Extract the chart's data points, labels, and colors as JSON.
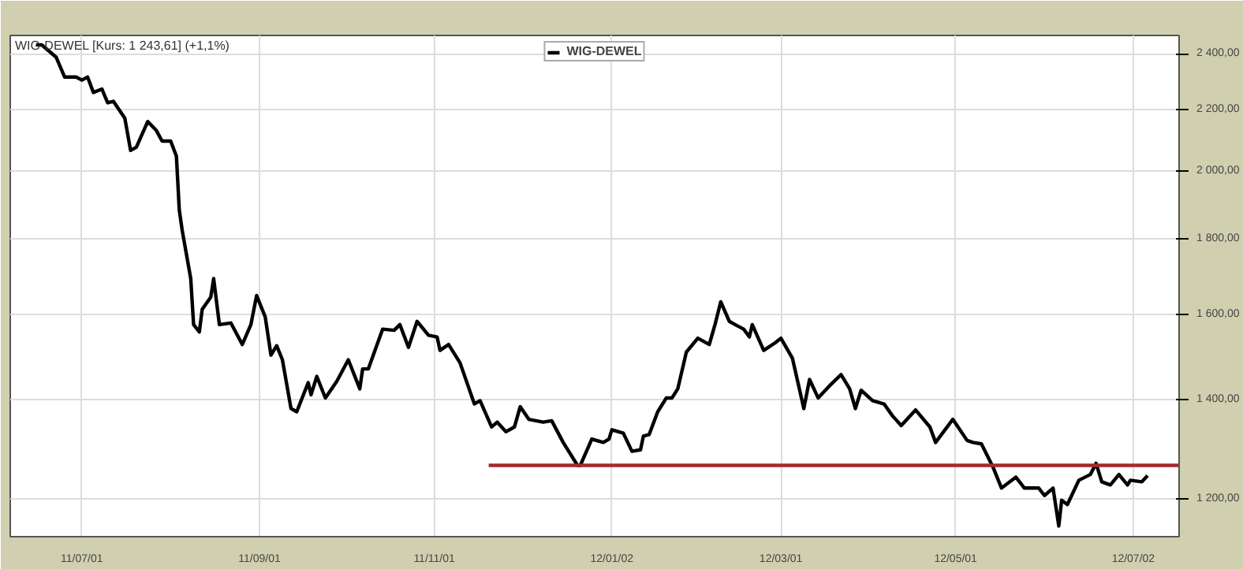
{
  "chart_data": {
    "type": "line",
    "annotations": [
      "WIG-DEWEL [Kurs: 1 243,61] (+1,1%)"
    ],
    "log": "y",
    "grid": true,
    "legend": "top",
    "marker": "none",
    "line_style": "solid",
    "xlim": [
      "2011-06-06",
      "2012-07-18"
    ],
    "xticks": [
      {
        "value": "2011-07-01",
        "label": "11/07/01"
      },
      {
        "value": "2011-09-01",
        "label": "11/09/01"
      },
      {
        "value": "2011-11-01",
        "label": "11/11/01"
      },
      {
        "value": "2012-01-02",
        "label": "12/01/02"
      },
      {
        "value": "2012-03-01",
        "label": "12/03/01"
      },
      {
        "value": "2012-05-01",
        "label": "12/05/01"
      },
      {
        "value": "2012-07-02",
        "label": "12/07/02"
      }
    ],
    "ylim": [
      1131,
      2470
    ],
    "yticks": [
      {
        "value": 1200,
        "label": "1 200,00"
      },
      {
        "value": 1400,
        "label": "1 400,00"
      },
      {
        "value": 1600,
        "label": "1 600,00"
      },
      {
        "value": 1800,
        "label": "1 800,00"
      },
      {
        "value": 2000,
        "label": "2 000,00"
      },
      {
        "value": 2200,
        "label": "2 200,00"
      },
      {
        "value": 2400,
        "label": "2 400,00"
      }
    ],
    "series": [
      {
        "name": "WIG-DEWEL",
        "color": "#000000",
        "x": [
          "2011-06-15",
          "2011-06-17",
          "2011-06-22",
          "2011-06-25",
          "2011-06-29",
          "2011-07-01",
          "2011-07-03",
          "2011-07-05",
          "2011-07-08",
          "2011-07-10",
          "2011-07-12",
          "2011-07-16",
          "2011-07-18",
          "2011-07-20",
          "2011-07-24",
          "2011-07-27",
          "2011-07-29",
          "2011-08-01",
          "2011-08-03",
          "2011-08-04",
          "2011-08-05",
          "2011-08-08",
          "2011-08-09",
          "2011-08-11",
          "2011-08-12",
          "2011-08-15",
          "2011-08-16",
          "2011-08-18",
          "2011-08-22",
          "2011-08-26",
          "2011-08-29",
          "2011-08-31",
          "2011-09-03",
          "2011-09-05",
          "2011-09-07",
          "2011-09-09",
          "2011-09-12",
          "2011-09-14",
          "2011-09-18",
          "2011-09-19",
          "2011-09-21",
          "2011-09-24",
          "2011-09-28",
          "2011-10-02",
          "2011-10-06",
          "2011-10-07",
          "2011-10-09",
          "2011-10-14",
          "2011-10-18",
          "2011-10-20",
          "2011-10-23",
          "2011-10-26",
          "2011-10-30",
          "2011-11-02",
          "2011-11-03",
          "2011-11-06",
          "2011-11-10",
          "2011-11-15",
          "2011-11-17",
          "2011-11-21",
          "2011-11-23",
          "2011-11-26",
          "2011-11-29",
          "2011-12-01",
          "2011-12-04",
          "2011-12-09",
          "2011-12-12",
          "2011-12-16",
          "2011-12-21",
          "2011-12-22",
          "2011-12-26",
          "2011-12-30",
          "2012-01-01",
          "2012-01-02",
          "2012-01-06",
          "2012-01-09",
          "2012-01-12",
          "2012-01-13",
          "2012-01-15",
          "2012-01-18",
          "2012-01-21",
          "2012-01-23",
          "2012-01-25",
          "2012-01-28",
          "2012-02-01",
          "2012-02-05",
          "2012-02-07",
          "2012-02-09",
          "2012-02-12",
          "2012-02-14",
          "2012-02-17",
          "2012-02-19",
          "2012-02-20",
          "2012-02-24",
          "2012-02-28",
          "2012-03-01",
          "2012-03-05",
          "2012-03-09",
          "2012-03-11",
          "2012-03-14",
          "2012-03-18",
          "2012-03-22",
          "2012-03-25",
          "2012-03-27",
          "2012-03-29",
          "2012-04-02",
          "2012-04-06",
          "2012-04-09",
          "2012-04-12",
          "2012-04-17",
          "2012-04-22",
          "2012-04-24",
          "2012-04-30",
          "2012-05-05",
          "2012-05-07",
          "2012-05-10",
          "2012-05-14",
          "2012-05-17",
          "2012-05-22",
          "2012-05-25",
          "2012-05-30",
          "2012-06-01",
          "2012-06-04",
          "2012-06-06",
          "2012-06-07",
          "2012-06-09",
          "2012-06-13",
          "2012-06-17",
          "2012-06-19",
          "2012-06-21",
          "2012-06-24",
          "2012-06-27",
          "2012-06-30",
          "2012-07-01",
          "2012-07-05",
          "2012-07-07"
        ],
        "values": [
          2434,
          2434,
          2388,
          2315,
          2315,
          2304,
          2315,
          2260,
          2272,
          2224,
          2229,
          2171,
          2065,
          2075,
          2160,
          2130,
          2095,
          2095,
          2046,
          1882,
          1824,
          1691,
          1574,
          1556,
          1612,
          1643,
          1691,
          1574,
          1578,
          1526,
          1574,
          1647,
          1593,
          1501,
          1523,
          1490,
          1381,
          1374,
          1438,
          1411,
          1452,
          1404,
          1441,
          1490,
          1424,
          1469,
          1469,
          1563,
          1560,
          1574,
          1519,
          1582,
          1548,
          1544,
          1512,
          1526,
          1483,
          1391,
          1398,
          1342,
          1352,
          1332,
          1342,
          1385,
          1358,
          1352,
          1355,
          1310,
          1264,
          1264,
          1317,
          1310,
          1317,
          1336,
          1329,
          1292,
          1295,
          1323,
          1326,
          1374,
          1404,
          1404,
          1424,
          1508,
          1541,
          1526,
          1574,
          1631,
          1582,
          1574,
          1563,
          1544,
          1574,
          1512,
          1530,
          1541,
          1494,
          1381,
          1445,
          1404,
          1431,
          1456,
          1424,
          1381,
          1421,
          1398,
          1391,
          1365,
          1345,
          1378,
          1342,
          1310,
          1358,
          1314,
          1310,
          1307,
          1261,
          1220,
          1241,
          1220,
          1220,
          1206,
          1220,
          1150,
          1197,
          1189,
          1235,
          1246,
          1268,
          1232,
          1226,
          1246,
          1226,
          1235,
          1232,
          1244
        ]
      },
      {
        "color": "#a52a2a",
        "type": "line",
        "x": [
          "2011-11-20",
          "2012-07-18"
        ],
        "values": [
          1264,
          1264
        ]
      }
    ]
  }
}
